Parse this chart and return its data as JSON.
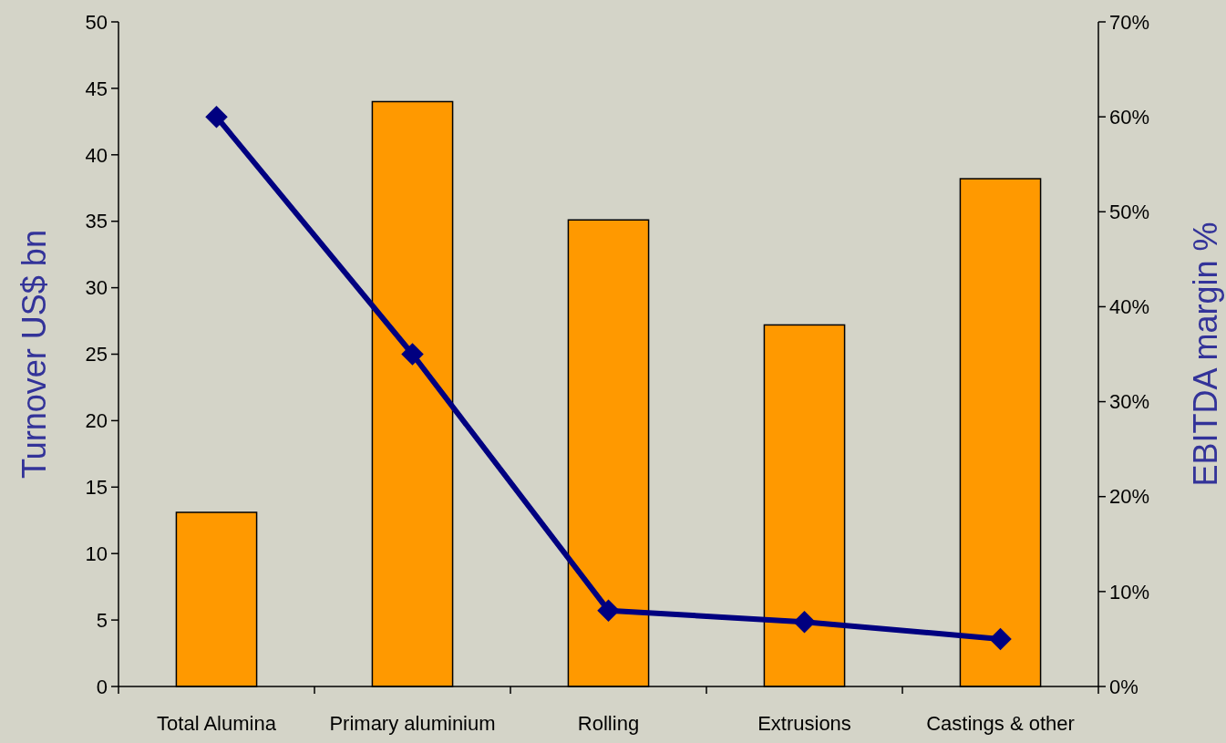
{
  "chart_data": {
    "type": "bar",
    "ylabel": "Turnover US$ bn",
    "y2label": "EBITDA margin %",
    "categories": [
      "Total Alumina",
      "Primary aluminium",
      "Rolling",
      "Extrusions",
      "Castings & other"
    ],
    "series": [
      {
        "color": "#ff9900",
        "values": [
          13.1,
          44.0,
          35.1,
          27.2,
          38.2
        ]
      },
      {
        "type": "line",
        "axis": "y2",
        "color": "#000080",
        "values": [
          60,
          35,
          8,
          6.8,
          5
        ]
      }
    ],
    "ylim": [
      0,
      50
    ],
    "yticks": [
      0,
      5,
      10,
      15,
      20,
      25,
      30,
      35,
      40,
      45,
      50
    ],
    "y2lim": [
      0,
      70
    ],
    "y2ticks": [
      {
        "value": 0,
        "label": "0%"
      },
      {
        "value": 10,
        "label": "10%"
      },
      {
        "value": 20,
        "label": "20%"
      },
      {
        "value": 30,
        "label": "30%"
      },
      {
        "value": 40,
        "label": "40%"
      },
      {
        "value": 50,
        "label": "50%"
      },
      {
        "value": 60,
        "label": "60%"
      },
      {
        "value": 70,
        "label": "70%"
      }
    ],
    "grid": false,
    "marker": "diamond",
    "line_style": "solid"
  }
}
